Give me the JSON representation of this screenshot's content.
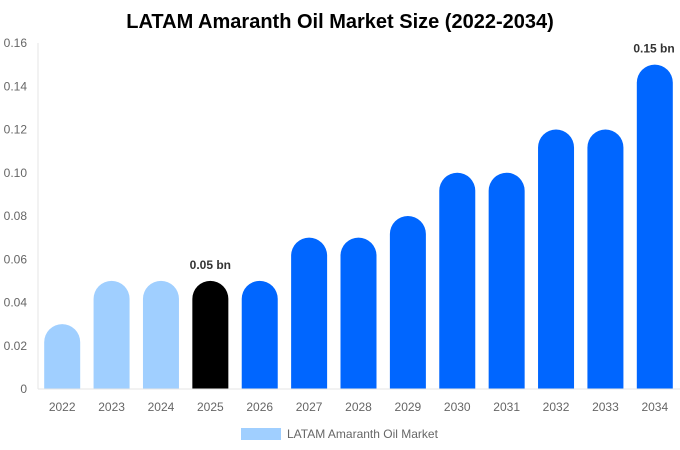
{
  "chart_data": {
    "type": "bar",
    "title": "LATAM Amaranth Oil Market Size (2022-2034)",
    "xlabel": "",
    "ylabel": "",
    "categories": [
      "2022",
      "2023",
      "2024",
      "2025",
      "2026",
      "2027",
      "2028",
      "2029",
      "2030",
      "2031",
      "2032",
      "2033",
      "2034"
    ],
    "series": [
      {
        "name": "LATAM Amaranth Oil Market",
        "values": [
          0.03,
          0.05,
          0.05,
          0.05,
          0.05,
          0.07,
          0.07,
          0.08,
          0.1,
          0.1,
          0.12,
          0.12,
          0.15
        ]
      }
    ],
    "bar_colors": [
      "#a0cfff",
      "#a0cfff",
      "#a0cfff",
      "#000000",
      "#0066ff",
      "#0066ff",
      "#0066ff",
      "#0066ff",
      "#0066ff",
      "#0066ff",
      "#0066ff",
      "#0066ff",
      "#0066ff"
    ],
    "data_labels": [
      {
        "category": "2025",
        "text": "0.05 bn"
      },
      {
        "category": "2034",
        "text": "0.15 bn"
      }
    ],
    "ylim": [
      0,
      0.16
    ],
    "yticks": [
      "0",
      "0.02",
      "0.04",
      "0.06",
      "0.08",
      "0.10",
      "0.12",
      "0.14",
      "0.16"
    ],
    "grid": false,
    "legend_position": "bottom",
    "legend_color": "#a0cfff"
  }
}
